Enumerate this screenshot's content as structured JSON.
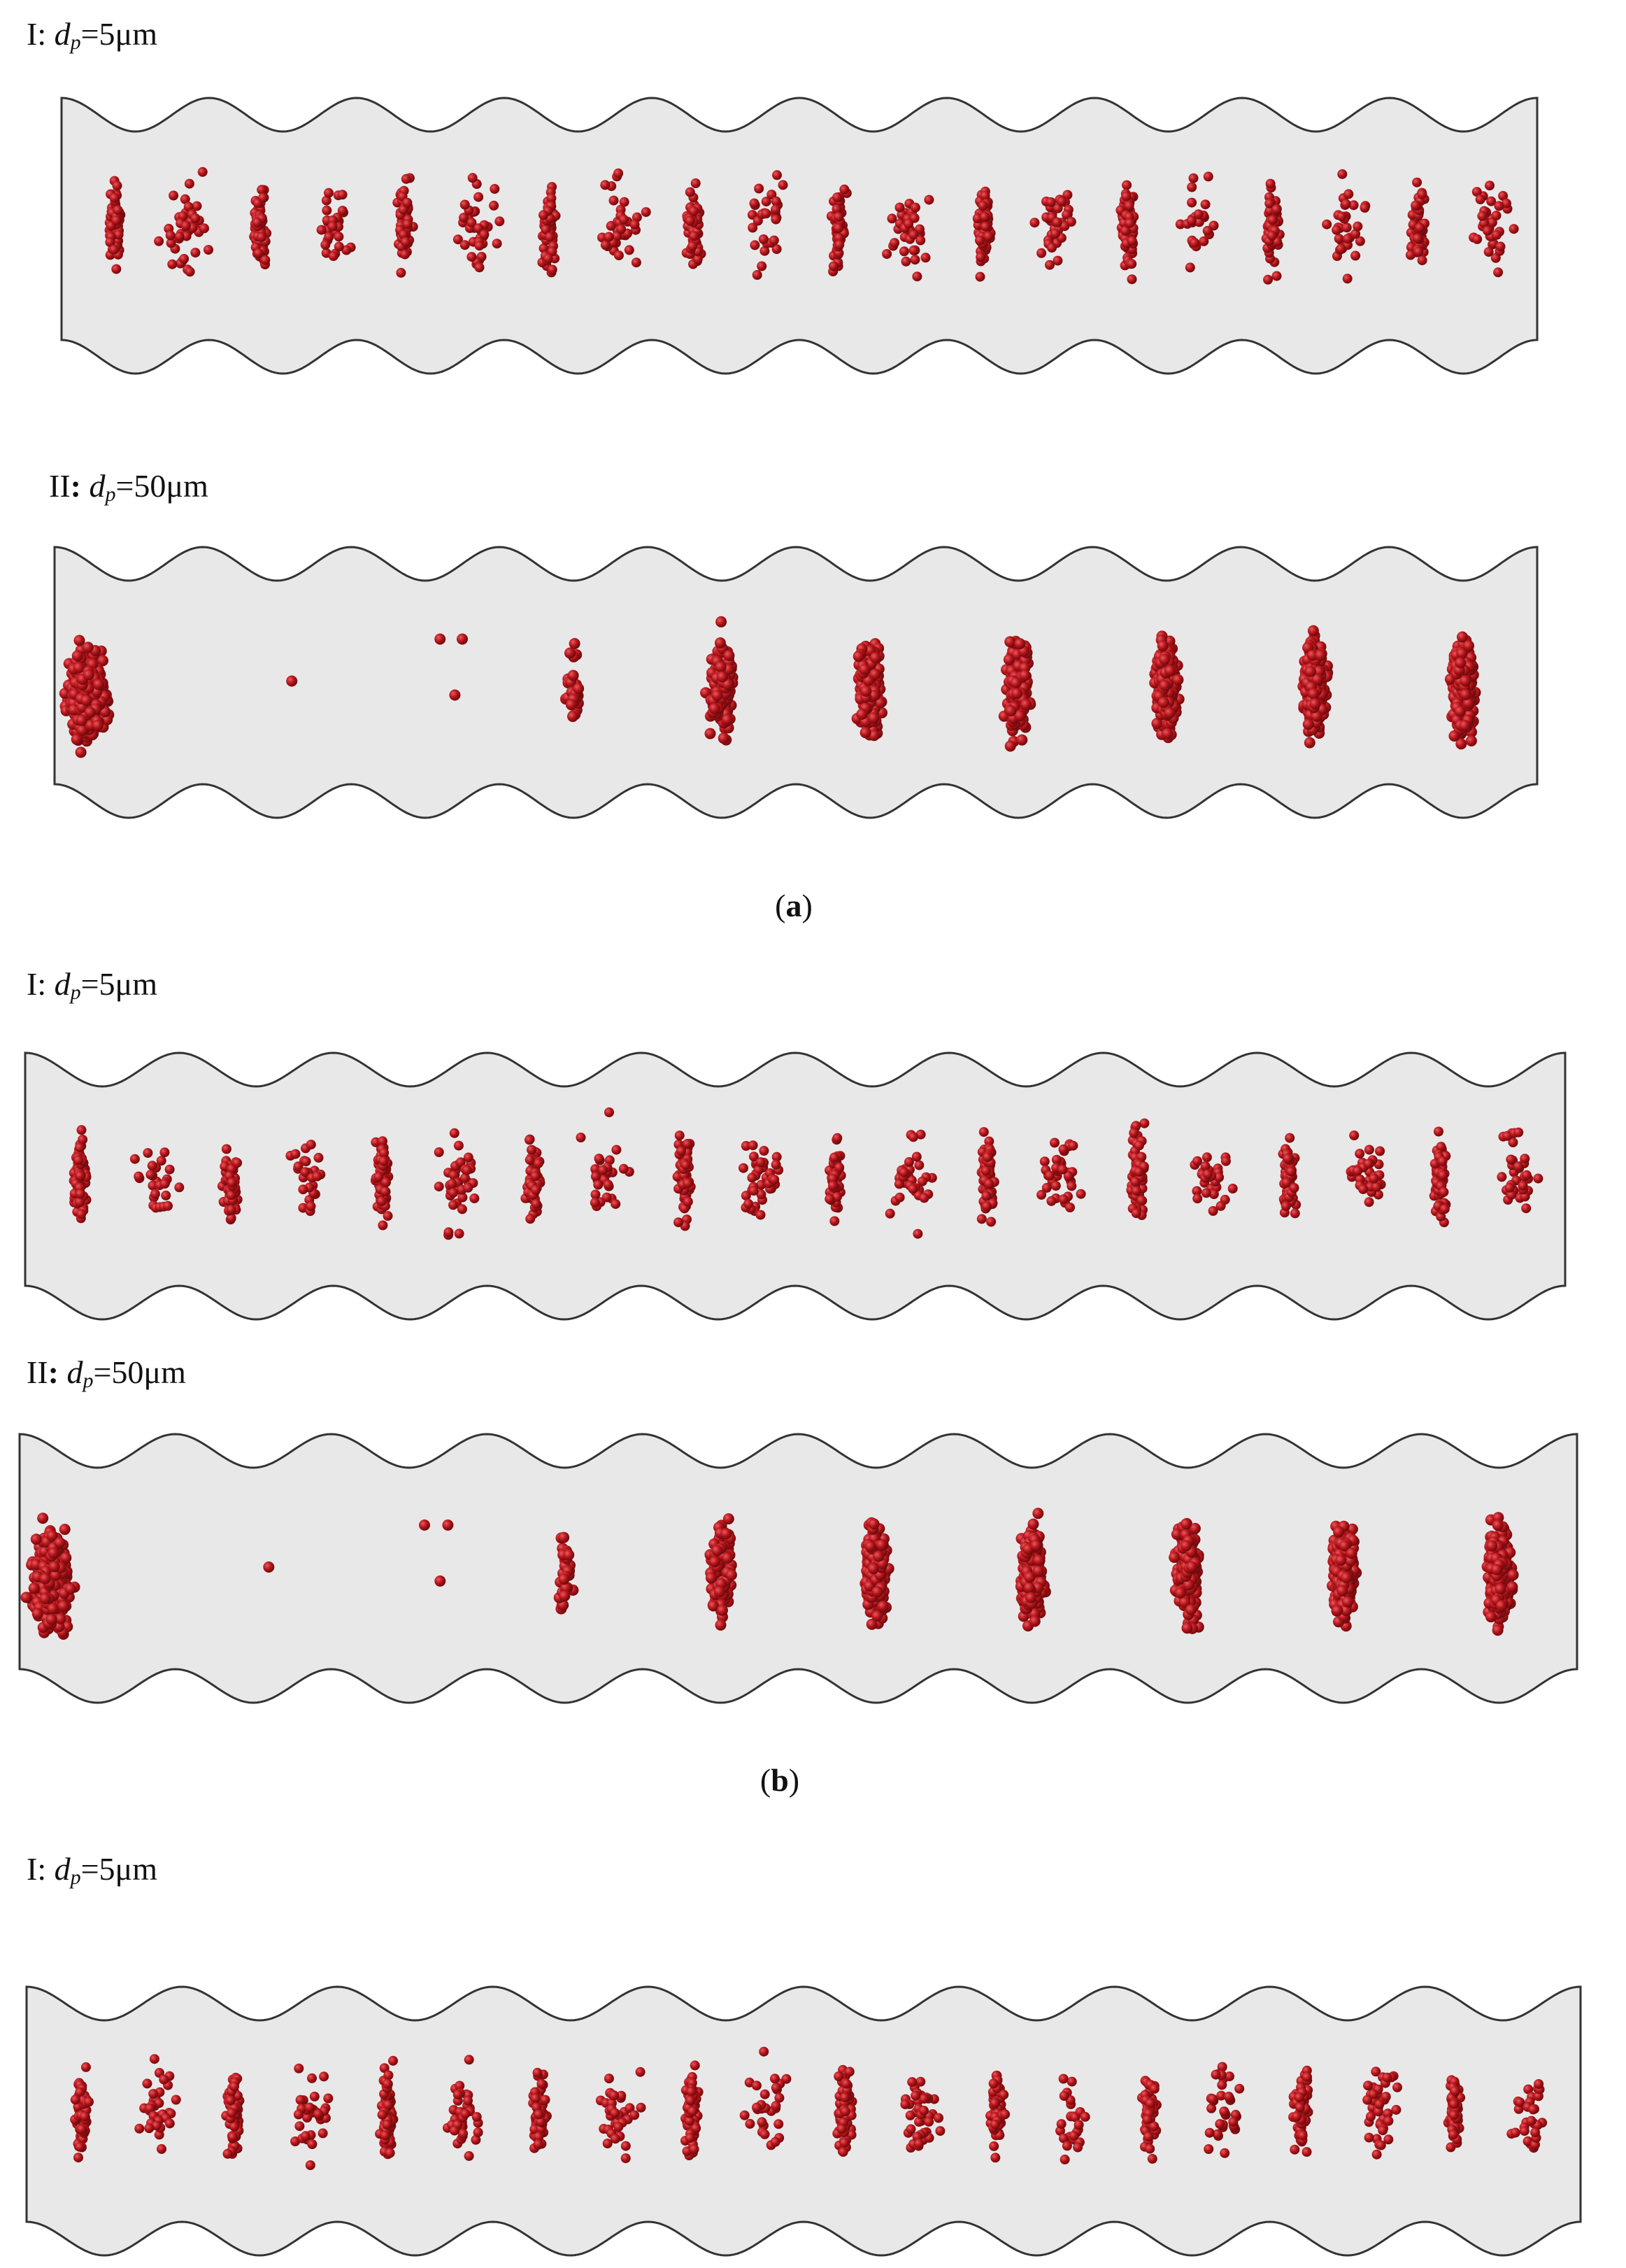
{
  "panels": [
    {
      "caption": "a",
      "channels": [
        {
          "label": {
            "roman": "I",
            "var": "d",
            "sub": "p",
            "value": "=5μm"
          },
          "particle_size": "5μm"
        },
        {
          "label": {
            "roman": "II",
            "var": "d",
            "sub": "p",
            "value": "=50μm"
          },
          "particle_size": "50μm"
        }
      ]
    },
    {
      "caption": "b",
      "channels": [
        {
          "label": {
            "roman": "I",
            "var": "d",
            "sub": "p",
            "value": "=5μm"
          },
          "particle_size": "5μm"
        },
        {
          "label": {
            "roman": "II",
            "var": "d",
            "sub": "p",
            "value": "=50μm"
          },
          "particle_size": "50μm"
        }
      ]
    },
    {
      "caption": "",
      "channels": [
        {
          "label": {
            "roman": "I",
            "var": "d",
            "sub": "p",
            "value": "=5μm"
          },
          "particle_size": "5μm"
        }
      ]
    }
  ],
  "colors": {
    "channel_fill": "#e8e8e8",
    "channel_stroke": "#333333",
    "particle": "#b5141a",
    "particle_highlight": "#e85a5f",
    "particle_dark": "#6e0a0d"
  }
}
